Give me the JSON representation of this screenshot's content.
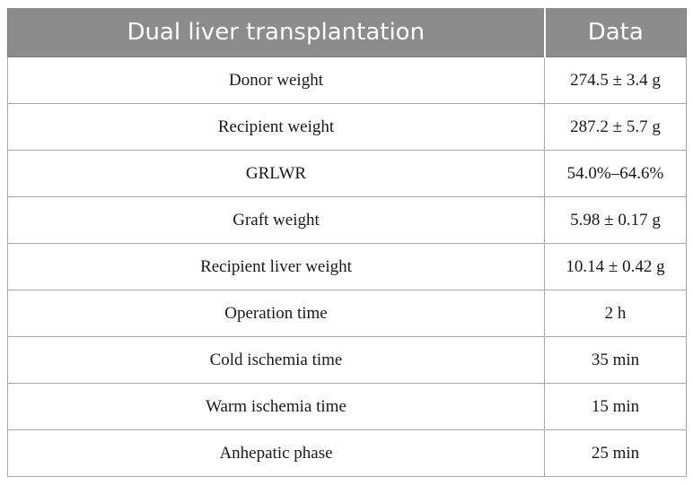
{
  "table": {
    "headers": [
      "Dual liver transplantation",
      "Data"
    ],
    "rows": [
      [
        "Donor weight",
        "274.5 ± 3.4 g"
      ],
      [
        "Recipient weight",
        "287.2 ± 5.7 g"
      ],
      [
        "GRLWR",
        "54.0%–64.6%"
      ],
      [
        "Graft weight",
        "5.98 ± 0.17 g"
      ],
      [
        "Recipient liver weight",
        "10.14 ± 0.42 g"
      ],
      [
        "Operation time",
        "2 h"
      ],
      [
        "Cold ischemia time",
        "35 min"
      ],
      [
        "Warm ischemia time",
        "15 min"
      ],
      [
        "Anhepatic phase",
        "25 min"
      ]
    ]
  },
  "colors": {
    "header_background": "#8c8c8c",
    "header_text": "#ffffff",
    "border": "#a8a8a8"
  }
}
